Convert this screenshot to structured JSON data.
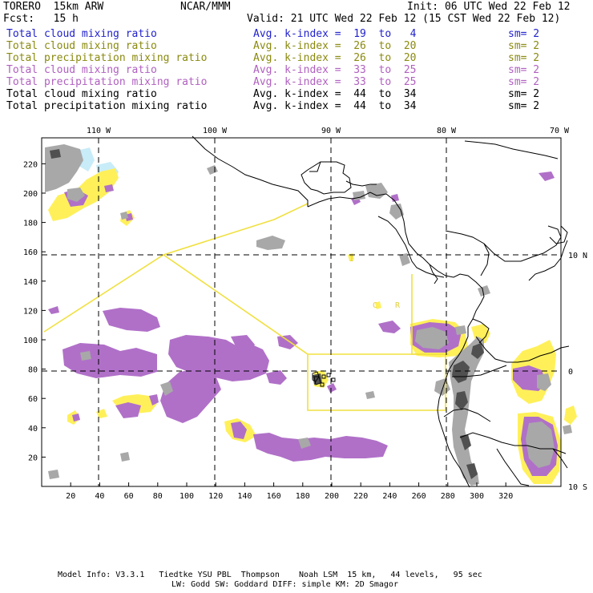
{
  "header": {
    "model": "TORERO  15km ARW",
    "org": "NCAR/MMM",
    "init": "Init: 06 UTC Wed 22 Feb 12",
    "fcst": "Fcst:   15 h",
    "valid": "Valid: 21 UTC Wed 22 Feb 12 (15 CST Wed 22 Feb 12)"
  },
  "legend": [
    {
      "field": "Total cloud mixing ratio",
      "index": "Avg. k-index =  19  to   4",
      "sm": "sm= 2",
      "color": "#2222cc"
    },
    {
      "field": "Total cloud mixing ratio",
      "index": "Avg. k-index =  26  to  20",
      "sm": "sm= 2",
      "color": "#8a8a10"
    },
    {
      "field": "Total precipitation mixing ratio",
      "index": "Avg. k-index =  26  to  20",
      "sm": "sm= 2",
      "color": "#8a8a10"
    },
    {
      "field": "Total cloud mixing ratio",
      "index": "Avg. k-index =  33  to  25",
      "sm": "sm= 2",
      "color": "#b060c0"
    },
    {
      "field": "Total precipitation mixing ratio",
      "index": "Avg. k-index =  33  to  25",
      "sm": "sm= 2",
      "color": "#b060c0"
    },
    {
      "field": "Total cloud mixing ratio",
      "index": "Avg. k-index =  44  to  34",
      "sm": "sm= 2",
      "color": "#000000"
    },
    {
      "field": "Total precipitation mixing ratio",
      "index": "Avg. k-index =  44  to  34",
      "sm": "sm= 2",
      "color": "#000000"
    }
  ],
  "axes": {
    "lon_labels": [
      "110 W",
      "100 W",
      "90 W",
      "80 W",
      "70 W"
    ],
    "lat_labels": [
      "10 N",
      "0",
      "10 S"
    ],
    "x_ticks": [
      "20",
      "40",
      "60",
      "80",
      "100",
      "120",
      "140",
      "160",
      "180",
      "200",
      "220",
      "240",
      "260",
      "280",
      "300",
      "320"
    ],
    "y_ticks": [
      "20",
      "40",
      "60",
      "80",
      "100",
      "120",
      "140",
      "160",
      "180",
      "200",
      "220"
    ]
  },
  "map_labels": [
    "C",
    "R",
    "I"
  ],
  "footer": {
    "line1": "Model Info: V3.3.1   Tiedtke YSU PBL  Thompson    Noah LSM  15 km,   44 levels,   95 sec",
    "line2": "LW: Godd SW: Goddard DIFF: simple KM: 2D Smagor"
  },
  "colors": {
    "cyan": "#c8ecf8",
    "yellow": "#fff05a",
    "purple": "#b070c8",
    "gray": "#a8a8a8",
    "dark": "#505050",
    "boundary": "#f0e040"
  }
}
